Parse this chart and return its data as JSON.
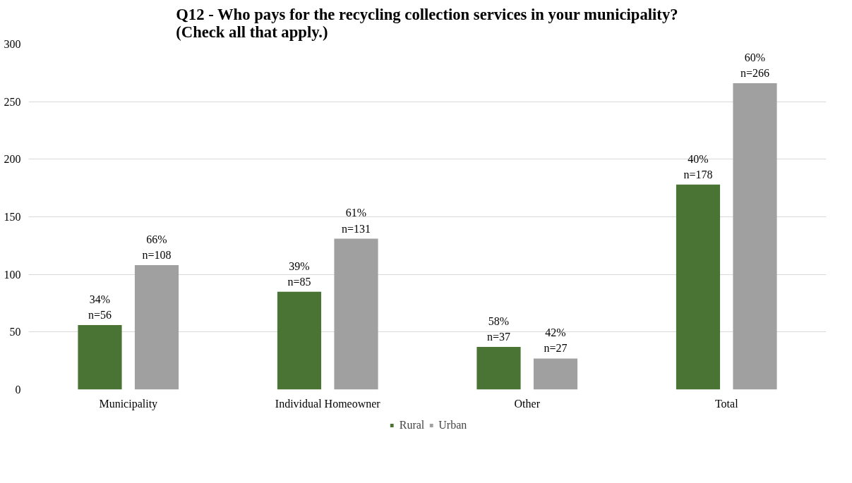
{
  "chart_data": {
    "type": "bar",
    "title": "Q12 - Who pays for the recycling collection services in your municipality?\n(Check all that apply.)",
    "categories": [
      "Municipality",
      "Individual Homeowner",
      "Other",
      "Total"
    ],
    "series": [
      {
        "name": "Rural",
        "color": "#4a7433",
        "values": [
          56,
          85,
          37,
          178
        ],
        "value_labels": [
          "34%\nn=56",
          "39%\nn=85",
          "58%\nn=37",
          "40%\nn=178"
        ]
      },
      {
        "name": "Urban",
        "color": "#a0a0a0",
        "values": [
          108,
          131,
          27,
          266
        ],
        "value_labels": [
          "66%\nn=108",
          "61%\nn=131",
          "42%\nn=27",
          "60%\nn=266"
        ]
      }
    ],
    "ylim": [
      0,
      300
    ],
    "yticks": [
      0,
      50,
      100,
      150,
      200,
      250,
      300
    ],
    "grid": "y",
    "legend": "bottom"
  }
}
